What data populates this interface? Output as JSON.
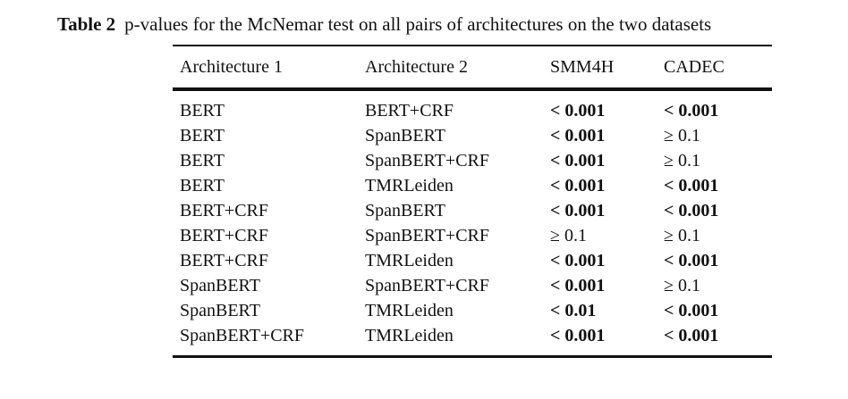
{
  "caption": {
    "label": "Table 2",
    "text": "p-values for the McNemar test on all pairs of architectures on the two datasets"
  },
  "table": {
    "headers": [
      "Architecture 1",
      "Architecture 2",
      "SMM4H",
      "CADEC"
    ],
    "rows": [
      {
        "a1": "BERT",
        "a2": "BERT+CRF",
        "smm4h": "< 0.001",
        "smm4h_bold": true,
        "cadec": "< 0.001",
        "cadec_bold": true
      },
      {
        "a1": "BERT",
        "a2": "SpanBERT",
        "smm4h": "< 0.001",
        "smm4h_bold": true,
        "cadec": "≥ 0.1",
        "cadec_bold": false
      },
      {
        "a1": "BERT",
        "a2": "SpanBERT+CRF",
        "smm4h": "< 0.001",
        "smm4h_bold": true,
        "cadec": "≥ 0.1",
        "cadec_bold": false
      },
      {
        "a1": "BERT",
        "a2": "TMRLeiden",
        "smm4h": "< 0.001",
        "smm4h_bold": true,
        "cadec": "< 0.001",
        "cadec_bold": true
      },
      {
        "a1": "BERT+CRF",
        "a2": "SpanBERT",
        "smm4h": "< 0.001",
        "smm4h_bold": true,
        "cadec": "< 0.001",
        "cadec_bold": true
      },
      {
        "a1": "BERT+CRF",
        "a2": "SpanBERT+CRF",
        "smm4h": "≥ 0.1",
        "smm4h_bold": false,
        "cadec": "≥ 0.1",
        "cadec_bold": false
      },
      {
        "a1": "BERT+CRF",
        "a2": "TMRLeiden",
        "smm4h": "< 0.001",
        "smm4h_bold": true,
        "cadec": "< 0.001",
        "cadec_bold": true
      },
      {
        "a1": "SpanBERT",
        "a2": "SpanBERT+CRF",
        "smm4h": "< 0.001",
        "smm4h_bold": true,
        "cadec": "≥ 0.1",
        "cadec_bold": false
      },
      {
        "a1": "SpanBERT",
        "a2": "TMRLeiden",
        "smm4h": "< 0.01",
        "smm4h_bold": true,
        "cadec": "< 0.001",
        "cadec_bold": true
      },
      {
        "a1": "SpanBERT+CRF",
        "a2": "TMRLeiden",
        "smm4h": "< 0.001",
        "smm4h_bold": true,
        "cadec": "< 0.001",
        "cadec_bold": true
      }
    ]
  }
}
